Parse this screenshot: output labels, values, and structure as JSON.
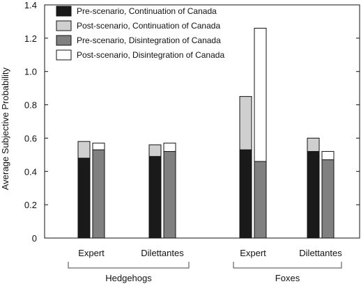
{
  "chart_data": {
    "type": "bar",
    "ylabel": "Average Subjective Probability",
    "xlabel": "",
    "ylim": [
      0,
      1.4
    ],
    "yticks": [
      0,
      0.2,
      0.4,
      0.6,
      0.8,
      1.0,
      1.2,
      1.4
    ],
    "ytick_labels": [
      "0",
      "0.2",
      "0.4",
      "0.6",
      "0.8",
      "1.0",
      "1.2",
      "1.4"
    ],
    "legend_position": "top-left",
    "grid": false,
    "series": [
      {
        "name": "Pre-scenario, Continuation of Canada",
        "color": "#1a1a1a",
        "values": [
          0.48,
          0.49,
          0.53,
          0.52
        ]
      },
      {
        "name": "Post-scenario, Continuation of Canada",
        "color": "#cfcfcf",
        "values": [
          0.58,
          0.56,
          0.85,
          0.6
        ]
      },
      {
        "name": "Pre-scenario, Disintegration of Canada",
        "color": "#808080",
        "values": [
          0.53,
          0.52,
          0.46,
          0.47
        ]
      },
      {
        "name": "Post-scenario, Disintegration of Canada",
        "color": "#ffffff",
        "values": [
          0.57,
          0.57,
          1.26,
          0.52
        ]
      }
    ],
    "categories": [
      "Expert",
      "Dilettantes",
      "Expert",
      "Dilettantes"
    ],
    "groups": [
      {
        "label": "Hedgehogs",
        "categories": [
          0,
          1
        ]
      },
      {
        "label": "Foxes",
        "categories": [
          2,
          3
        ]
      }
    ]
  }
}
